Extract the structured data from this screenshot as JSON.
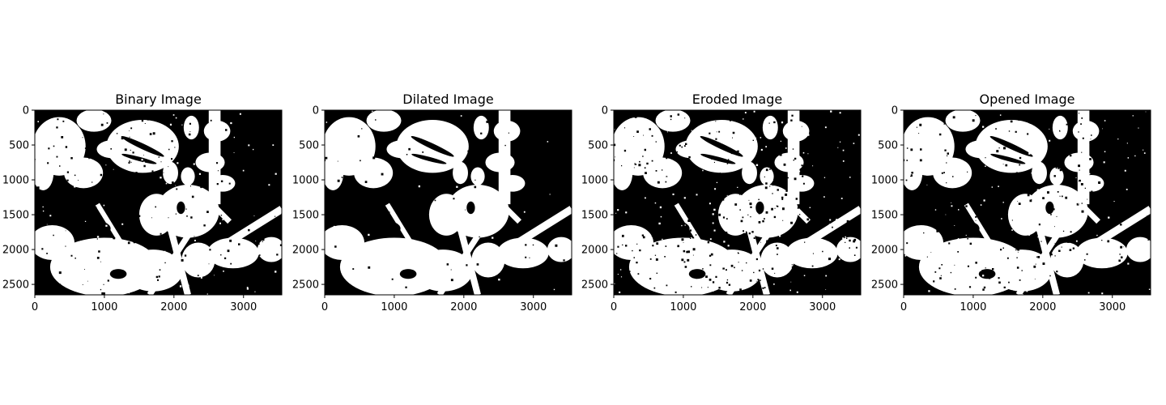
{
  "chart_data": [
    {
      "type": "heatmap",
      "title": "Binary Image",
      "xlabel": "",
      "ylabel": "",
      "xlim": [
        0,
        3550
      ],
      "ylim": [
        2650,
        0
      ],
      "xticks": [
        0,
        1000,
        2000,
        3000
      ],
      "yticks": [
        0,
        500,
        1000,
        1500,
        2000,
        2500
      ],
      "colormap": "gray",
      "colors": {
        "background": "#000000",
        "foreground": "#ffffff"
      },
      "grid": false,
      "speckle": 0.18
    },
    {
      "type": "heatmap",
      "title": "Dilated Image",
      "xlabel": "",
      "ylabel": "",
      "xlim": [
        0,
        3550
      ],
      "ylim": [
        2650,
        0
      ],
      "xticks": [
        0,
        1000,
        2000,
        3000
      ],
      "yticks": [
        0,
        500,
        1000,
        1500,
        2000,
        2500
      ],
      "colormap": "gray",
      "colors": {
        "background": "#000000",
        "foreground": "#ffffff"
      },
      "grid": false,
      "speckle": 0.05
    },
    {
      "type": "heatmap",
      "title": "Eroded Image",
      "xlabel": "",
      "ylabel": "",
      "xlim": [
        0,
        3550
      ],
      "ylim": [
        2650,
        0
      ],
      "xticks": [
        0,
        1000,
        2000,
        3000
      ],
      "yticks": [
        0,
        500,
        1000,
        1500,
        2000,
        2500
      ],
      "colormap": "gray",
      "colors": {
        "background": "#000000",
        "foreground": "#ffffff"
      },
      "grid": false,
      "speckle": 0.32
    },
    {
      "type": "heatmap",
      "title": "Opened Image",
      "xlabel": "",
      "ylabel": "",
      "xlim": [
        0,
        3550
      ],
      "ylim": [
        2650,
        0
      ],
      "xticks": [
        0,
        1000,
        2000,
        3000
      ],
      "yticks": [
        0,
        500,
        1000,
        1500,
        2000,
        2500
      ],
      "colormap": "gray",
      "colors": {
        "background": "#000000",
        "foreground": "#ffffff"
      },
      "grid": false,
      "speckle": 0.22
    }
  ]
}
